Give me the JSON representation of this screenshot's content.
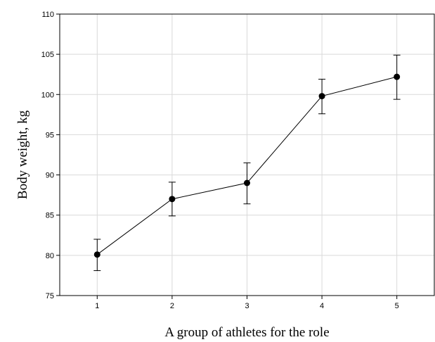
{
  "chart_data": {
    "type": "line",
    "title": "",
    "xlabel": "A group of athletes for the role",
    "ylabel": "Body weight, kg",
    "x": [
      1,
      2,
      3,
      4,
      5
    ],
    "series": [
      {
        "values": [
          80.1,
          87.0,
          89.0,
          99.8,
          102.2
        ],
        "err_low": [
          78.1,
          84.9,
          86.4,
          97.6,
          99.4
        ],
        "err_high": [
          82.0,
          89.1,
          91.5,
          101.9,
          104.9
        ]
      }
    ],
    "xlim": [
      0.5,
      5.5
    ],
    "ylim": [
      75,
      110
    ],
    "xticks": [
      "1",
      "2",
      "3",
      "4",
      "5"
    ],
    "yticks": [
      "75",
      "80",
      "85",
      "90",
      "95",
      "100",
      "105",
      "110"
    ],
    "grid": true,
    "colors": {
      "line": "#000000",
      "marker": "#000000",
      "grid": "#d9d9d9",
      "axis": "#000000"
    }
  }
}
